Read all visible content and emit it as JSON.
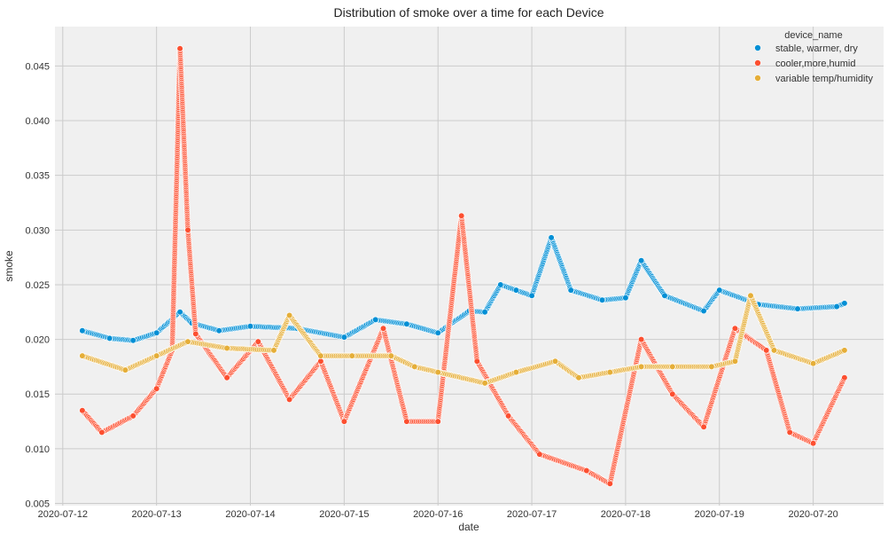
{
  "chart_data": {
    "type": "scatter",
    "title": "Distribution of smoke over a time for each Device",
    "xlabel": "date",
    "ylabel": "smoke",
    "x_ticks": [
      "2020-07-12",
      "2020-07-13",
      "2020-07-14",
      "2020-07-15",
      "2020-07-16",
      "2020-07-17",
      "2020-07-18",
      "2020-07-19",
      "2020-07-20"
    ],
    "xlim": [
      "2020-07-11T22:00",
      "2020-07-20T18:00"
    ],
    "y_ticks": [
      "0.005",
      "0.010",
      "0.015",
      "0.020",
      "0.025",
      "0.030",
      "0.035",
      "0.040",
      "0.045"
    ],
    "ylim": [
      0.0048,
      0.0486
    ],
    "grid": true,
    "legend": {
      "title": "device_name",
      "position": "top-right"
    },
    "series": [
      {
        "name": "stable, warmer, dry",
        "color": "#008fd5",
        "points": [
          [
            "2020-07-12T05:00",
            0.0208
          ],
          [
            "2020-07-12T12:00",
            0.0201
          ],
          [
            "2020-07-12T18:00",
            0.0199
          ],
          [
            "2020-07-13T00:00",
            0.0206
          ],
          [
            "2020-07-13T06:00",
            0.0225
          ],
          [
            "2020-07-13T09:00",
            0.0215
          ],
          [
            "2020-07-13T16:00",
            0.0208
          ],
          [
            "2020-07-14T00:00",
            0.0212
          ],
          [
            "2020-07-14T12:00",
            0.021
          ],
          [
            "2020-07-15T00:00",
            0.0202
          ],
          [
            "2020-07-15T08:00",
            0.0218
          ],
          [
            "2020-07-15T16:00",
            0.0214
          ],
          [
            "2020-07-16T00:00",
            0.0206
          ],
          [
            "2020-07-16T08:00",
            0.0226
          ],
          [
            "2020-07-16T12:00",
            0.0225
          ],
          [
            "2020-07-16T16:00",
            0.025
          ],
          [
            "2020-07-16T20:00",
            0.0245
          ],
          [
            "2020-07-17T00:00",
            0.024
          ],
          [
            "2020-07-17T05:00",
            0.0293
          ],
          [
            "2020-07-17T10:00",
            0.0245
          ],
          [
            "2020-07-17T18:00",
            0.0236
          ],
          [
            "2020-07-18T00:00",
            0.0238
          ],
          [
            "2020-07-18T04:00",
            0.0272
          ],
          [
            "2020-07-18T10:00",
            0.024
          ],
          [
            "2020-07-18T20:00",
            0.0226
          ],
          [
            "2020-07-19T00:00",
            0.0245
          ],
          [
            "2020-07-19T10:00",
            0.0232
          ],
          [
            "2020-07-19T20:00",
            0.0228
          ],
          [
            "2020-07-20T06:00",
            0.023
          ],
          [
            "2020-07-20T08:00",
            0.0233
          ]
        ]
      },
      {
        "name": "cooler,more,humid",
        "color": "#fc4f30",
        "points": [
          [
            "2020-07-12T05:00",
            0.0135
          ],
          [
            "2020-07-12T10:00",
            0.0115
          ],
          [
            "2020-07-12T18:00",
            0.013
          ],
          [
            "2020-07-13T00:00",
            0.0155
          ],
          [
            "2020-07-13T04:00",
            0.019
          ],
          [
            "2020-07-13T06:00",
            0.0466
          ],
          [
            "2020-07-13T08:00",
            0.03
          ],
          [
            "2020-07-13T10:00",
            0.0205
          ],
          [
            "2020-07-13T18:00",
            0.0165
          ],
          [
            "2020-07-14T02:00",
            0.0198
          ],
          [
            "2020-07-14T10:00",
            0.0145
          ],
          [
            "2020-07-14T18:00",
            0.018
          ],
          [
            "2020-07-15T00:00",
            0.0125
          ],
          [
            "2020-07-15T10:00",
            0.021
          ],
          [
            "2020-07-15T16:00",
            0.0125
          ],
          [
            "2020-07-16T00:00",
            0.0125
          ],
          [
            "2020-07-16T06:00",
            0.0313
          ],
          [
            "2020-07-16T10:00",
            0.018
          ],
          [
            "2020-07-16T18:00",
            0.013
          ],
          [
            "2020-07-17T02:00",
            0.0095
          ],
          [
            "2020-07-17T14:00",
            0.008
          ],
          [
            "2020-07-17T20:00",
            0.0068
          ],
          [
            "2020-07-18T04:00",
            0.02
          ],
          [
            "2020-07-18T12:00",
            0.015
          ],
          [
            "2020-07-18T20:00",
            0.012
          ],
          [
            "2020-07-19T04:00",
            0.021
          ],
          [
            "2020-07-19T12:00",
            0.019
          ],
          [
            "2020-07-19T18:00",
            0.0115
          ],
          [
            "2020-07-20T00:00",
            0.0105
          ],
          [
            "2020-07-20T08:00",
            0.0165
          ]
        ]
      },
      {
        "name": "variable temp/humidity",
        "color": "#e5ae38",
        "points": [
          [
            "2020-07-12T05:00",
            0.0185
          ],
          [
            "2020-07-12T16:00",
            0.0172
          ],
          [
            "2020-07-13T00:00",
            0.0185
          ],
          [
            "2020-07-13T08:00",
            0.0198
          ],
          [
            "2020-07-13T18:00",
            0.0192
          ],
          [
            "2020-07-14T06:00",
            0.019
          ],
          [
            "2020-07-14T10:00",
            0.0222
          ],
          [
            "2020-07-14T18:00",
            0.0185
          ],
          [
            "2020-07-15T02:00",
            0.0185
          ],
          [
            "2020-07-15T12:00",
            0.0185
          ],
          [
            "2020-07-15T18:00",
            0.0175
          ],
          [
            "2020-07-16T00:00",
            0.017
          ],
          [
            "2020-07-16T12:00",
            0.016
          ],
          [
            "2020-07-16T20:00",
            0.017
          ],
          [
            "2020-07-17T06:00",
            0.018
          ],
          [
            "2020-07-17T12:00",
            0.0165
          ],
          [
            "2020-07-17T20:00",
            0.017
          ],
          [
            "2020-07-18T04:00",
            0.0175
          ],
          [
            "2020-07-18T12:00",
            0.0175
          ],
          [
            "2020-07-18T22:00",
            0.0175
          ],
          [
            "2020-07-19T04:00",
            0.018
          ],
          [
            "2020-07-19T08:00",
            0.024
          ],
          [
            "2020-07-19T14:00",
            0.019
          ],
          [
            "2020-07-20T00:00",
            0.0178
          ],
          [
            "2020-07-20T08:00",
            0.019
          ]
        ]
      }
    ]
  }
}
